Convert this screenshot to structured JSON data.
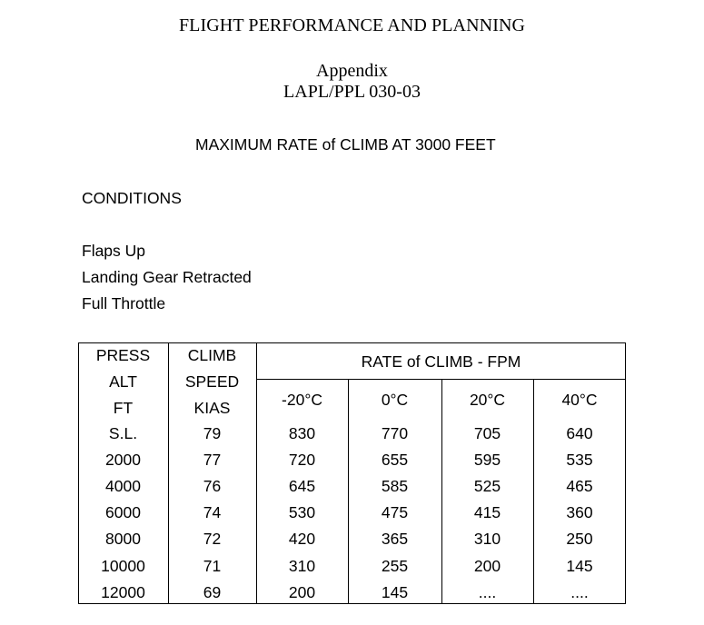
{
  "header": {
    "title": "FLIGHT PERFORMANCE AND PLANNING",
    "appendix": "Appendix",
    "reference": "LAPL/PPL 030-03"
  },
  "table_title": "MAXIMUM RATE of CLIMB AT 3000 FEET",
  "conditions": {
    "heading": "CONDITIONS",
    "items": [
      "Flaps Up",
      "Landing Gear Retracted",
      "Full Throttle"
    ]
  },
  "table": {
    "col1_header": [
      "PRESS",
      "ALT",
      "FT"
    ],
    "col2_header": [
      "CLIMB",
      "SPEED",
      "KIAS"
    ],
    "group_header": "RATE of CLIMB - FPM",
    "temp_headers": [
      "-20°C",
      "0°C",
      "20°C",
      "40°C"
    ],
    "rows": [
      [
        "S.L.",
        "79",
        "830",
        "770",
        "705",
        "640"
      ],
      [
        "2000",
        "77",
        "720",
        "655",
        "595",
        "535"
      ],
      [
        "4000",
        "76",
        "645",
        "585",
        "525",
        "465"
      ],
      [
        "6000",
        "74",
        "530",
        "475",
        "415",
        "360"
      ],
      [
        "8000",
        "72",
        "420",
        "365",
        "310",
        "250"
      ],
      [
        "10000",
        "71",
        "310",
        "255",
        "200",
        "145"
      ],
      [
        "12000",
        "69",
        "200",
        "145",
        "....",
        "...."
      ]
    ]
  }
}
